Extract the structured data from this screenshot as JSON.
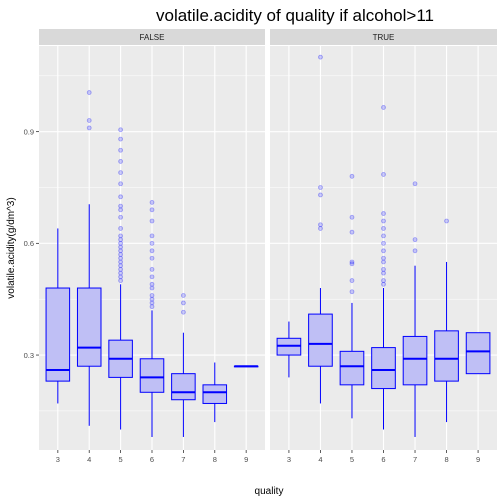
{
  "chart_data": {
    "type": "box",
    "title": "volatile.acidity of quality if alcohol>11",
    "xlabel": "quality",
    "ylabel": "volatile.acidity(g/dm^3)",
    "facet_variable": "alcohol>11",
    "x_categories": [
      "3",
      "4",
      "5",
      "6",
      "7",
      "8",
      "9"
    ],
    "yticks": [
      0.3,
      0.6,
      0.9
    ],
    "ylim": [
      0.045,
      1.13
    ],
    "grid": true,
    "colors": {
      "fill": "#bfbff5",
      "stroke": "#0000ff",
      "panel": "#ebebeb",
      "strip": "#d9d9d9",
      "grid": "#ffffff"
    },
    "panels": [
      {
        "label": "FALSE",
        "boxes": [
          {
            "x": "3",
            "whisker_low": 0.17,
            "q1": 0.23,
            "median": 0.26,
            "q3": 0.48,
            "whisker_high": 0.64,
            "outliers": []
          },
          {
            "x": "4",
            "whisker_low": 0.11,
            "q1": 0.27,
            "median": 0.32,
            "q3": 0.48,
            "whisker_high": 0.705,
            "outliers": [
              0.91,
              0.93,
              1.005
            ]
          },
          {
            "x": "5",
            "whisker_low": 0.1,
            "q1": 0.24,
            "median": 0.29,
            "q3": 0.34,
            "whisker_high": 0.49,
            "outliers": [
              0.5,
              0.51,
              0.52,
              0.53,
              0.54,
              0.55,
              0.56,
              0.57,
              0.58,
              0.59,
              0.6,
              0.61,
              0.62,
              0.64,
              0.67,
              0.69,
              0.7,
              0.725,
              0.76,
              0.79,
              0.82,
              0.85,
              0.88,
              0.905
            ]
          },
          {
            "x": "6",
            "whisker_low": 0.08,
            "q1": 0.2,
            "median": 0.24,
            "q3": 0.29,
            "whisker_high": 0.42,
            "outliers": [
              0.43,
              0.44,
              0.45,
              0.46,
              0.48,
              0.49,
              0.51,
              0.53,
              0.56,
              0.58,
              0.6,
              0.62,
              0.66,
              0.69,
              0.71
            ]
          },
          {
            "x": "7",
            "whisker_low": 0.08,
            "q1": 0.18,
            "median": 0.2,
            "q3": 0.25,
            "whisker_high": 0.36,
            "outliers": [
              0.415,
              0.44,
              0.46
            ]
          },
          {
            "x": "8",
            "whisker_low": 0.12,
            "q1": 0.17,
            "median": 0.2,
            "q3": 0.22,
            "whisker_high": 0.28,
            "outliers": []
          },
          {
            "x": "9",
            "whisker_low": 0.27,
            "q1": 0.27,
            "median": 0.27,
            "q3": 0.27,
            "whisker_high": 0.27,
            "outliers": []
          }
        ]
      },
      {
        "label": "TRUE",
        "boxes": [
          {
            "x": "3",
            "whisker_low": 0.24,
            "q1": 0.3,
            "median": 0.325,
            "q3": 0.345,
            "whisker_high": 0.39,
            "outliers": []
          },
          {
            "x": "4",
            "whisker_low": 0.17,
            "q1": 0.27,
            "median": 0.33,
            "q3": 0.41,
            "whisker_high": 0.48,
            "outliers": [
              0.64,
              0.65,
              0.73,
              0.75,
              1.1
            ]
          },
          {
            "x": "5",
            "whisker_low": 0.13,
            "q1": 0.22,
            "median": 0.27,
            "q3": 0.31,
            "whisker_high": 0.44,
            "outliers": [
              0.47,
              0.5,
              0.545,
              0.55,
              0.63,
              0.67,
              0.78
            ]
          },
          {
            "x": "6",
            "whisker_low": 0.1,
            "q1": 0.21,
            "median": 0.26,
            "q3": 0.32,
            "whisker_high": 0.48,
            "outliers": [
              0.49,
              0.5,
              0.52,
              0.53,
              0.55,
              0.56,
              0.58,
              0.6,
              0.62,
              0.64,
              0.66,
              0.68,
              0.785,
              0.965
            ]
          },
          {
            "x": "7",
            "whisker_low": 0.08,
            "q1": 0.22,
            "median": 0.29,
            "q3": 0.35,
            "whisker_high": 0.54,
            "outliers": [
              0.58,
              0.61,
              0.76
            ]
          },
          {
            "x": "8",
            "whisker_low": 0.12,
            "q1": 0.23,
            "median": 0.29,
            "q3": 0.365,
            "whisker_high": 0.55,
            "outliers": [
              0.66
            ]
          },
          {
            "x": "9",
            "whisker_low": 0.25,
            "q1": 0.25,
            "median": 0.31,
            "q3": 0.36,
            "whisker_high": 0.36,
            "outliers": []
          }
        ]
      }
    ]
  }
}
